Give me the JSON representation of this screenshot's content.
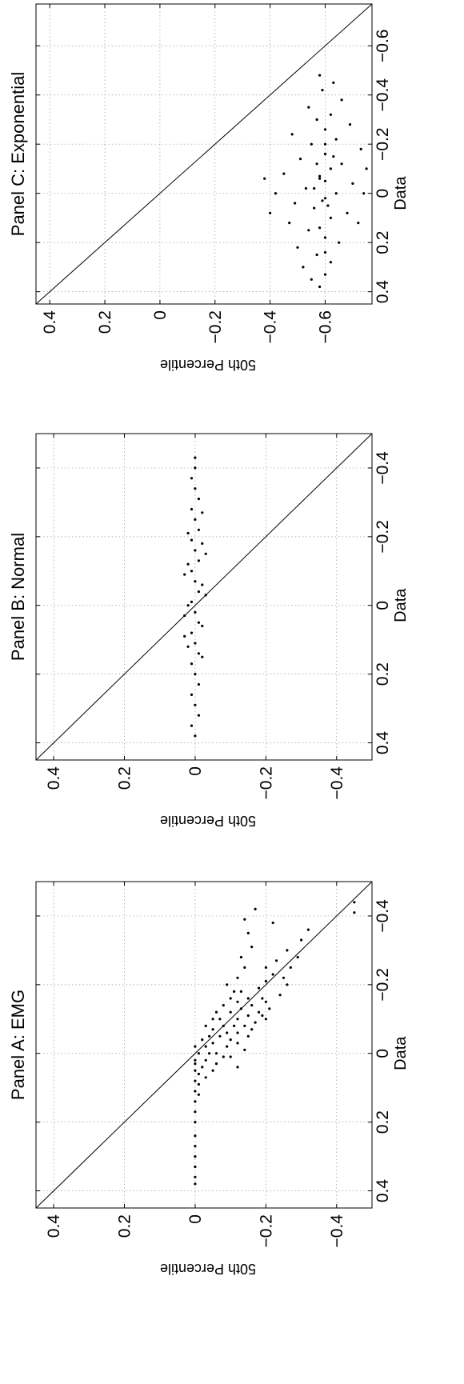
{
  "chart_data": [
    {
      "type": "scatter",
      "title": "Panel A: EMG",
      "xlabel": "Data",
      "ylabel": "50th Percentile",
      "xlim": [
        -0.5,
        0.45
      ],
      "ylim": [
        -0.5,
        0.45
      ],
      "x_ticks": [
        "−0.4",
        "−0.2",
        "0",
        "0.2",
        "0.4"
      ],
      "y_ticks": [
        "0.4",
        "0.2",
        "0",
        "−0.2",
        "−0.4"
      ],
      "tick_values": [
        -0.4,
        -0.2,
        0,
        0.2,
        0.4
      ],
      "grid": true,
      "reference_line": "y = x",
      "series": [
        {
          "points": [
            [
              0.38,
              0.0
            ],
            [
              0.36,
              0.0
            ],
            [
              0.33,
              0.0
            ],
            [
              0.3,
              0.0
            ],
            [
              0.27,
              0.0
            ],
            [
              0.24,
              0.0
            ],
            [
              0.2,
              0.0
            ],
            [
              0.17,
              0.0
            ],
            [
              0.14,
              0.0
            ],
            [
              0.11,
              0.0
            ],
            [
              0.08,
              0.0
            ],
            [
              0.05,
              0.0
            ],
            [
              0.02,
              0.0
            ],
            [
              0.12,
              -0.01
            ],
            [
              0.09,
              -0.01
            ],
            [
              0.06,
              -0.01
            ],
            [
              0.03,
              0.0
            ],
            [
              0.0,
              -0.01
            ],
            [
              -0.02,
              0.0
            ],
            [
              0.04,
              -0.02
            ],
            [
              0.07,
              -0.03
            ],
            [
              0.02,
              -0.03
            ],
            [
              0.0,
              -0.04
            ],
            [
              -0.02,
              -0.03
            ],
            [
              -0.04,
              -0.02
            ],
            [
              0.05,
              -0.05
            ],
            [
              0.03,
              -0.06
            ],
            [
              0.0,
              -0.06
            ],
            [
              -0.03,
              -0.05
            ],
            [
              -0.05,
              -0.07
            ],
            [
              -0.07,
              -0.05
            ],
            [
              0.01,
              -0.08
            ],
            [
              -0.02,
              -0.09
            ],
            [
              -0.04,
              -0.1
            ],
            [
              -0.06,
              -0.09
            ],
            [
              -0.08,
              -0.08
            ],
            [
              -0.1,
              -0.07
            ],
            [
              -0.03,
              -0.12
            ],
            [
              -0.06,
              -0.12
            ],
            [
              -0.08,
              -0.11
            ],
            [
              -0.1,
              -0.12
            ],
            [
              -0.12,
              -0.1
            ],
            [
              -0.05,
              -0.15
            ],
            [
              -0.08,
              -0.14
            ],
            [
              -0.11,
              -0.15
            ],
            [
              -0.13,
              -0.13
            ],
            [
              -0.15,
              -0.12
            ],
            [
              -0.09,
              -0.17
            ],
            [
              -0.12,
              -0.18
            ],
            [
              -0.14,
              -0.16
            ],
            [
              -0.16,
              -0.15
            ],
            [
              -0.18,
              -0.13
            ],
            [
              -0.1,
              -0.2
            ],
            [
              -0.13,
              -0.21
            ],
            [
              -0.16,
              -0.19
            ],
            [
              -0.19,
              -0.18
            ],
            [
              -0.21,
              -0.2
            ],
            [
              -0.23,
              -0.22
            ],
            [
              -0.25,
              -0.2
            ],
            [
              -0.27,
              -0.23
            ],
            [
              -0.22,
              -0.25
            ],
            [
              -0.25,
              -0.27
            ],
            [
              -0.28,
              -0.29
            ],
            [
              -0.3,
              -0.26
            ],
            [
              -0.33,
              -0.3
            ],
            [
              -0.36,
              -0.32
            ],
            [
              -0.17,
              -0.24
            ],
            [
              -0.2,
              -0.26
            ],
            [
              -0.05,
              -0.04
            ],
            [
              -0.08,
              -0.03
            ],
            [
              -0.1,
              -0.05
            ],
            [
              -0.12,
              -0.06
            ],
            [
              -0.14,
              -0.08
            ],
            [
              -0.16,
              -0.1
            ],
            [
              -0.18,
              -0.11
            ],
            [
              -0.2,
              -0.09
            ],
            [
              -0.22,
              -0.12
            ],
            [
              -0.25,
              -0.14
            ],
            [
              -0.28,
              -0.13
            ],
            [
              -0.31,
              -0.16
            ],
            [
              -0.35,
              -0.15
            ],
            [
              -0.39,
              -0.14
            ],
            [
              -0.42,
              -0.17
            ],
            [
              -0.38,
              -0.22
            ],
            [
              -0.41,
              -0.45
            ],
            [
              -0.44,
              -0.45
            ],
            [
              0.01,
              -0.1
            ],
            [
              0.04,
              -0.12
            ],
            [
              -0.01,
              -0.14
            ],
            [
              -0.07,
              -0.16
            ],
            [
              -0.11,
              -0.19
            ],
            [
              -0.15,
              -0.2
            ]
          ]
        }
      ]
    },
    {
      "type": "scatter",
      "title": "Panel B: Normal",
      "xlabel": "Data",
      "ylabel": "50th Percentile",
      "xlim": [
        -0.5,
        0.45
      ],
      "ylim": [
        -0.5,
        0.45
      ],
      "x_ticks": [
        "−0.4",
        "−0.2",
        "0",
        "0.2",
        "0.4"
      ],
      "y_ticks": [
        "0.4",
        "0.2",
        "0",
        "−0.2",
        "−0.4"
      ],
      "tick_values": [
        -0.4,
        -0.2,
        0,
        0.2,
        0.4
      ],
      "grid": true,
      "reference_line": "y = x",
      "series": [
        {
          "points": [
            [
              0.38,
              0.0
            ],
            [
              0.35,
              0.01
            ],
            [
              0.32,
              -0.01
            ],
            [
              0.29,
              0.0
            ],
            [
              0.26,
              0.01
            ],
            [
              0.23,
              -0.01
            ],
            [
              0.2,
              0.0
            ],
            [
              0.17,
              0.01
            ],
            [
              0.14,
              -0.01
            ],
            [
              0.11,
              0.0
            ],
            [
              0.08,
              0.01
            ],
            [
              0.05,
              -0.01
            ],
            [
              0.02,
              0.0
            ],
            [
              -0.01,
              0.01
            ],
            [
              -0.04,
              -0.01
            ],
            [
              -0.07,
              0.0
            ],
            [
              -0.1,
              0.01
            ],
            [
              -0.13,
              -0.01
            ],
            [
              -0.16,
              0.0
            ],
            [
              -0.19,
              0.01
            ],
            [
              -0.22,
              -0.01
            ],
            [
              -0.25,
              0.0
            ],
            [
              -0.28,
              0.01
            ],
            [
              -0.31,
              -0.01
            ],
            [
              -0.34,
              0.0
            ],
            [
              -0.37,
              0.01
            ],
            [
              -0.4,
              0.0
            ],
            [
              -0.43,
              0.0
            ],
            [
              0.12,
              0.02
            ],
            [
              0.06,
              -0.02
            ],
            [
              0.0,
              0.02
            ],
            [
              -0.06,
              -0.02
            ],
            [
              -0.12,
              0.02
            ],
            [
              -0.18,
              -0.02
            ],
            [
              0.09,
              0.03
            ],
            [
              -0.03,
              -0.03
            ],
            [
              -0.09,
              0.03
            ],
            [
              -0.15,
              -0.03
            ],
            [
              0.03,
              0.03
            ],
            [
              -0.21,
              0.02
            ],
            [
              0.15,
              -0.02
            ],
            [
              -0.27,
              -0.02
            ]
          ]
        }
      ]
    },
    {
      "type": "scatter",
      "title": "Panel C: Exponential",
      "xlabel": "Data",
      "ylabel": "50th Percentile",
      "xlim": [
        -0.77,
        0.45
      ],
      "ylim": [
        -0.77,
        0.45
      ],
      "x_ticks": [
        "−0.6",
        "−0.4",
        "−0.2",
        "0",
        "0.2",
        "0.4"
      ],
      "y_ticks": [
        "0.4",
        "0.2",
        "0",
        "−0.2",
        "−0.4",
        "−0.6"
      ],
      "tick_values": [
        -0.6,
        -0.4,
        -0.2,
        0,
        0.2,
        0.4
      ],
      "grid": true,
      "reference_line": "y = x",
      "series": [
        {
          "points": [
            [
              0.38,
              -0.58
            ],
            [
              0.35,
              -0.55
            ],
            [
              0.33,
              -0.6
            ],
            [
              0.3,
              -0.52
            ],
            [
              0.28,
              -0.62
            ],
            [
              0.25,
              -0.57
            ],
            [
              0.22,
              -0.5
            ],
            [
              0.2,
              -0.65
            ],
            [
              0.18,
              -0.6
            ],
            [
              0.15,
              -0.54
            ],
            [
              0.12,
              -0.47
            ],
            [
              0.1,
              -0.62
            ],
            [
              0.08,
              -0.68
            ],
            [
              0.06,
              -0.56
            ],
            [
              0.04,
              -0.49
            ],
            [
              0.02,
              -0.6
            ],
            [
              0.0,
              -0.64
            ],
            [
              -0.02,
              -0.53
            ],
            [
              -0.04,
              -0.7
            ],
            [
              -0.06,
              -0.58
            ],
            [
              -0.08,
              -0.45
            ],
            [
              -0.1,
              -0.62
            ],
            [
              -0.12,
              -0.66
            ],
            [
              -0.14,
              -0.51
            ],
            [
              -0.16,
              -0.6
            ],
            [
              -0.18,
              -0.73
            ],
            [
              -0.2,
              -0.55
            ],
            [
              -0.22,
              -0.64
            ],
            [
              -0.24,
              -0.48
            ],
            [
              -0.26,
              -0.6
            ],
            [
              -0.28,
              -0.69
            ],
            [
              -0.3,
              -0.57
            ],
            [
              -0.32,
              -0.62
            ],
            [
              -0.35,
              -0.54
            ],
            [
              -0.38,
              -0.66
            ],
            [
              -0.42,
              -0.59
            ],
            [
              -0.45,
              -0.63
            ],
            [
              -0.48,
              -0.58
            ],
            [
              0.08,
              -0.4
            ],
            [
              0.0,
              -0.42
            ],
            [
              -0.06,
              -0.38
            ],
            [
              -0.1,
              -0.75
            ],
            [
              0.0,
              -0.74
            ],
            [
              0.12,
              -0.72
            ],
            [
              -0.02,
              -0.56
            ],
            [
              -0.05,
              -0.6
            ],
            [
              -0.07,
              -0.58
            ],
            [
              0.03,
              -0.59
            ],
            [
              0.05,
              -0.61
            ],
            [
              -0.12,
              -0.57
            ],
            [
              -0.15,
              -0.63
            ],
            [
              0.14,
              -0.58
            ],
            [
              -0.2,
              -0.6
            ],
            [
              0.24,
              -0.6
            ]
          ]
        }
      ]
    }
  ]
}
